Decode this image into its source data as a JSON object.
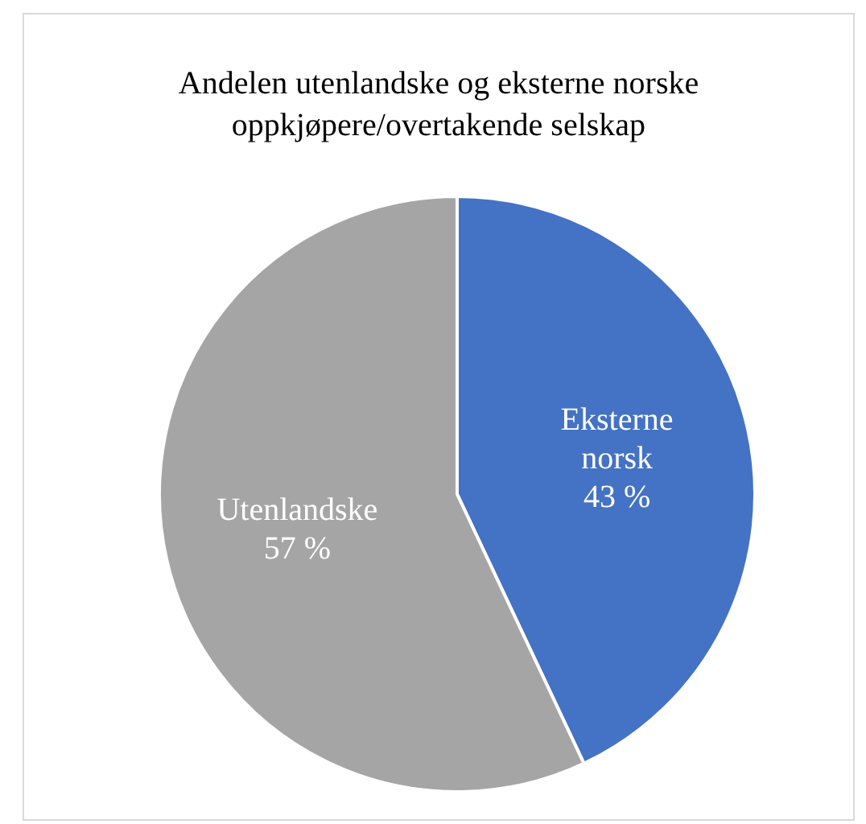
{
  "chart_data": {
    "type": "pie",
    "title": "Andelen utenlandske og eksterne norske oppkjøpere/overtakende selskap",
    "categories": [
      "Eksterne norsk",
      "Utenlandske"
    ],
    "values": [
      43,
      57
    ],
    "colors": [
      "#4472c4",
      "#a5a5a5"
    ],
    "value_labels": [
      "43 %",
      "57 %"
    ]
  }
}
